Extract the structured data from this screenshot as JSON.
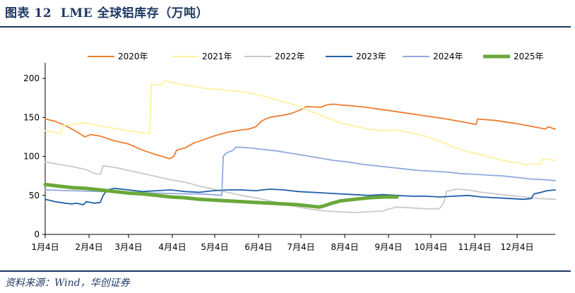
{
  "header": {
    "figure_label": "图表 12",
    "title": "LME 全球铝库存（万吨）"
  },
  "footer": {
    "source": "资料来源：Wind，华创证券"
  },
  "chart_data": {
    "type": "line",
    "title": "LME 全球铝库存（万吨）",
    "xlabel": "",
    "ylabel": "",
    "ylim": [
      0,
      220
    ],
    "y_ticks": [
      0,
      50,
      100,
      150,
      200
    ],
    "x_ticks": [
      "1月4日",
      "2月4日",
      "3月4日",
      "4月4日",
      "5月4日",
      "6月4日",
      "7月4日",
      "8月4日",
      "9月4日",
      "10月4日",
      "11月4日",
      "12月4日"
    ],
    "x_unit": "day of year (1 = 1月4日)",
    "x_range": [
      1,
      362
    ],
    "legend_position": "top",
    "series": [
      {
        "name": "2020年",
        "color": "#ed7d31",
        "points": [
          [
            1,
            148
          ],
          [
            8,
            145
          ],
          [
            15,
            140
          ],
          [
            22,
            133
          ],
          [
            29,
            125
          ],
          [
            33,
            128
          ],
          [
            40,
            126
          ],
          [
            50,
            120
          ],
          [
            60,
            116
          ],
          [
            70,
            108
          ],
          [
            78,
            103
          ],
          [
            84,
            100
          ],
          [
            89,
            97
          ],
          [
            92,
            100
          ],
          [
            94,
            108
          ],
          [
            100,
            111
          ],
          [
            106,
            117
          ],
          [
            114,
            122
          ],
          [
            122,
            127
          ],
          [
            130,
            131
          ],
          [
            140,
            134
          ],
          [
            145,
            135
          ],
          [
            150,
            138
          ],
          [
            154,
            145
          ],
          [
            157,
            148
          ],
          [
            160,
            150
          ],
          [
            166,
            152
          ],
          [
            170,
            153
          ],
          [
            175,
            155
          ],
          [
            182,
            160
          ],
          [
            186,
            164
          ],
          [
            196,
            163
          ],
          [
            200,
            166
          ],
          [
            205,
            167
          ],
          [
            210,
            166
          ],
          [
            218,
            165
          ],
          [
            228,
            163
          ],
          [
            240,
            160
          ],
          [
            255,
            156
          ],
          [
            270,
            152
          ],
          [
            285,
            148
          ],
          [
            300,
            143
          ],
          [
            306,
            141
          ],
          [
            307,
            148
          ],
          [
            320,
            146
          ],
          [
            335,
            142
          ],
          [
            350,
            137
          ],
          [
            355,
            135
          ],
          [
            357,
            138
          ],
          [
            362,
            135
          ]
        ]
      },
      {
        "name": "2021年",
        "color": "#fff2a0",
        "points": [
          [
            1,
            133
          ],
          [
            8,
            131
          ],
          [
            12,
            129
          ],
          [
            14,
            140
          ],
          [
            20,
            141
          ],
          [
            30,
            143
          ],
          [
            40,
            139
          ],
          [
            50,
            136
          ],
          [
            60,
            133
          ],
          [
            70,
            130
          ],
          [
            75,
            129
          ],
          [
            76,
            193
          ],
          [
            82,
            191
          ],
          [
            86,
            197
          ],
          [
            95,
            193
          ],
          [
            105,
            190
          ],
          [
            115,
            187
          ],
          [
            125,
            186
          ],
          [
            130,
            184
          ],
          [
            135,
            184
          ],
          [
            140,
            183
          ],
          [
            150,
            180
          ],
          [
            160,
            175
          ],
          [
            170,
            170
          ],
          [
            180,
            165
          ],
          [
            190,
            157
          ],
          [
            200,
            150
          ],
          [
            210,
            143
          ],
          [
            220,
            139
          ],
          [
            230,
            135
          ],
          [
            240,
            133
          ],
          [
            250,
            134
          ],
          [
            260,
            130
          ],
          [
            270,
            126
          ],
          [
            280,
            120
          ],
          [
            290,
            112
          ],
          [
            300,
            106
          ],
          [
            310,
            102
          ],
          [
            320,
            97
          ],
          [
            330,
            93
          ],
          [
            337,
            92
          ],
          [
            340,
            89
          ],
          [
            348,
            91
          ],
          [
            352,
            90
          ],
          [
            353,
            97
          ],
          [
            362,
            95
          ]
        ]
      },
      {
        "name": "2022年",
        "color": "#c9c9c9",
        "points": [
          [
            1,
            93
          ],
          [
            10,
            90
          ],
          [
            20,
            87
          ],
          [
            30,
            83
          ],
          [
            36,
            78
          ],
          [
            40,
            77
          ],
          [
            42,
            88
          ],
          [
            50,
            86
          ],
          [
            60,
            82
          ],
          [
            70,
            78
          ],
          [
            80,
            74
          ],
          [
            90,
            70
          ],
          [
            100,
            67
          ],
          [
            110,
            62
          ],
          [
            120,
            58
          ],
          [
            130,
            54
          ],
          [
            140,
            50
          ],
          [
            150,
            47
          ],
          [
            160,
            43
          ],
          [
            170,
            39
          ],
          [
            180,
            35
          ],
          [
            190,
            32
          ],
          [
            200,
            30
          ],
          [
            210,
            29
          ],
          [
            220,
            28
          ],
          [
            230,
            29
          ],
          [
            240,
            30
          ],
          [
            245,
            33
          ],
          [
            250,
            35
          ],
          [
            260,
            34
          ],
          [
            270,
            33
          ],
          [
            280,
            33
          ],
          [
            283,
            40
          ],
          [
            285,
            55
          ],
          [
            292,
            58
          ],
          [
            300,
            57
          ],
          [
            310,
            54
          ],
          [
            320,
            52
          ],
          [
            330,
            50
          ],
          [
            340,
            48
          ],
          [
            350,
            46
          ],
          [
            362,
            45
          ]
        ]
      },
      {
        "name": "2023年",
        "color": "#1f5fa8",
        "points": [
          [
            1,
            45
          ],
          [
            8,
            42
          ],
          [
            15,
            40
          ],
          [
            20,
            39
          ],
          [
            23,
            40
          ],
          [
            28,
            38
          ],
          [
            30,
            42
          ],
          [
            36,
            40
          ],
          [
            40,
            41
          ],
          [
            42,
            50
          ],
          [
            45,
            57
          ],
          [
            50,
            59
          ],
          [
            60,
            57
          ],
          [
            70,
            55
          ],
          [
            80,
            56
          ],
          [
            90,
            57
          ],
          [
            100,
            55
          ],
          [
            110,
            54
          ],
          [
            120,
            56
          ],
          [
            130,
            57
          ],
          [
            140,
            57
          ],
          [
            150,
            56
          ],
          [
            160,
            58
          ],
          [
            170,
            57
          ],
          [
            180,
            55
          ],
          [
            190,
            54
          ],
          [
            200,
            53
          ],
          [
            210,
            52
          ],
          [
            220,
            51
          ],
          [
            230,
            50
          ],
          [
            240,
            51
          ],
          [
            250,
            50
          ],
          [
            260,
            49
          ],
          [
            270,
            49
          ],
          [
            280,
            48
          ],
          [
            290,
            49
          ],
          [
            300,
            50
          ],
          [
            310,
            48
          ],
          [
            320,
            47
          ],
          [
            330,
            46
          ],
          [
            340,
            45
          ],
          [
            345,
            46
          ],
          [
            347,
            52
          ],
          [
            352,
            54
          ],
          [
            356,
            56
          ],
          [
            362,
            57
          ]
        ]
      },
      {
        "name": "2024年",
        "color": "#8faadc",
        "points": [
          [
            1,
            57
          ],
          [
            20,
            56
          ],
          [
            40,
            55
          ],
          [
            60,
            54
          ],
          [
            80,
            53
          ],
          [
            100,
            52
          ],
          [
            110,
            52
          ],
          [
            120,
            51
          ],
          [
            126,
            50
          ],
          [
            127,
            100
          ],
          [
            129,
            104
          ],
          [
            134,
            108
          ],
          [
            136,
            112
          ],
          [
            145,
            111
          ],
          [
            155,
            109
          ],
          [
            165,
            107
          ],
          [
            175,
            104
          ],
          [
            185,
            101
          ],
          [
            195,
            98
          ],
          [
            205,
            95
          ],
          [
            215,
            93
          ],
          [
            225,
            90
          ],
          [
            235,
            88
          ],
          [
            245,
            86
          ],
          [
            255,
            84
          ],
          [
            265,
            82
          ],
          [
            275,
            81
          ],
          [
            285,
            80
          ],
          [
            295,
            78
          ],
          [
            305,
            77
          ],
          [
            315,
            76
          ],
          [
            325,
            75
          ],
          [
            335,
            73
          ],
          [
            345,
            71
          ],
          [
            355,
            70
          ],
          [
            362,
            69
          ]
        ]
      },
      {
        "name": "2025年",
        "color": "#6aa83a",
        "points": [
          [
            1,
            64
          ],
          [
            10,
            62
          ],
          [
            20,
            60
          ],
          [
            30,
            59
          ],
          [
            40,
            57
          ],
          [
            50,
            55
          ],
          [
            60,
            53
          ],
          [
            70,
            52
          ],
          [
            80,
            50
          ],
          [
            90,
            48
          ],
          [
            100,
            47
          ],
          [
            110,
            45
          ],
          [
            120,
            44
          ],
          [
            130,
            43
          ],
          [
            140,
            42
          ],
          [
            150,
            41
          ],
          [
            160,
            40
          ],
          [
            170,
            39
          ],
          [
            180,
            38
          ],
          [
            190,
            36
          ],
          [
            195,
            35
          ],
          [
            199,
            37
          ],
          [
            204,
            40
          ],
          [
            210,
            43
          ],
          [
            220,
            45
          ],
          [
            230,
            47
          ],
          [
            240,
            48
          ],
          [
            250,
            48
          ]
        ]
      }
    ]
  }
}
